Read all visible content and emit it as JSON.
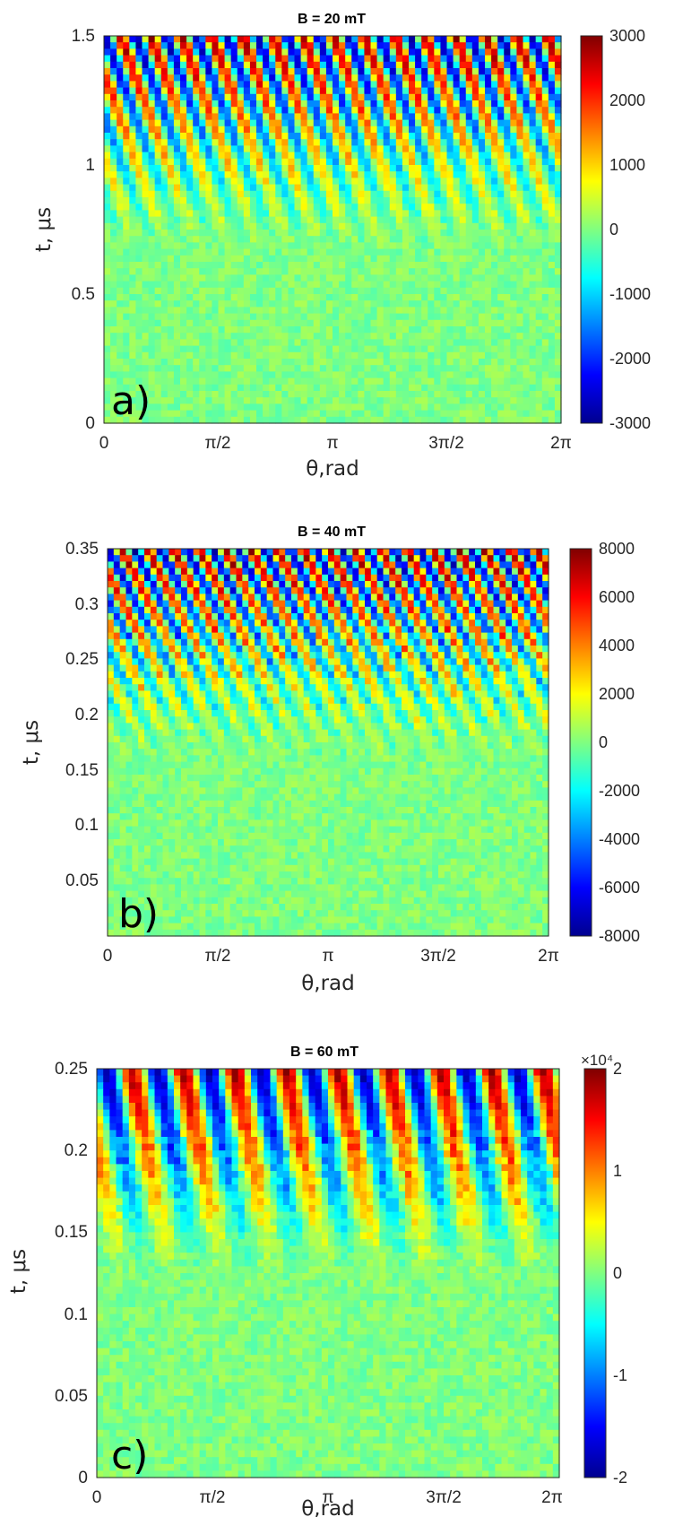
{
  "chart_data": [
    {
      "type": "heatmap",
      "title": "B = 20 mT",
      "tag": "a)",
      "xlabel": "θ,rad",
      "ylabel": "t, μs",
      "xlim": [
        0,
        6.2832
      ],
      "ylim": [
        0,
        1.5
      ],
      "x_ticks": [
        {
          "value": 0,
          "label": "0"
        },
        {
          "value": 1.5708,
          "label": "π/2"
        },
        {
          "value": 3.1416,
          "label": "π"
        },
        {
          "value": 4.7124,
          "label": "3π/2"
        },
        {
          "value": 6.2832,
          "label": "2π"
        }
      ],
      "y_ticks": [
        {
          "value": 0,
          "label": "0"
        },
        {
          "value": 0.5,
          "label": "0.5"
        },
        {
          "value": 1,
          "label": "1"
        },
        {
          "value": 1.5,
          "label": "1.5"
        }
      ],
      "clim": [
        -3000,
        3000
      ],
      "colorbar_ticks": [
        {
          "value": 3000,
          "label": "3000"
        },
        {
          "value": 2000,
          "label": "2000"
        },
        {
          "value": 1000,
          "label": "1000"
        },
        {
          "value": 0,
          "label": "0"
        },
        {
          "value": -1000,
          "label": "-1000"
        },
        {
          "value": -2000,
          "label": "-2000"
        },
        {
          "value": -3000,
          "label": "-3000"
        }
      ],
      "colorbar_exponent": "",
      "colormap": "jet",
      "pattern": {
        "onset": 0.45,
        "stripes": 15,
        "speed": 0.9,
        "chaos_start": 0
      }
    },
    {
      "type": "heatmap",
      "title": "B = 40 mT",
      "tag": "b)",
      "xlabel": "θ,rad",
      "ylabel": "t, μs",
      "xlim": [
        0,
        6.2832
      ],
      "ylim": [
        0,
        0.35
      ],
      "x_ticks": [
        {
          "value": 0,
          "label": "0"
        },
        {
          "value": 1.5708,
          "label": "π/2"
        },
        {
          "value": 3.1416,
          "label": "π"
        },
        {
          "value": 4.7124,
          "label": "3π/2"
        },
        {
          "value": 6.2832,
          "label": "2π"
        }
      ],
      "y_ticks": [
        {
          "value": 0.05,
          "label": "0.05"
        },
        {
          "value": 0.1,
          "label": "0.1"
        },
        {
          "value": 0.15,
          "label": "0.15"
        },
        {
          "value": 0.2,
          "label": "0.2"
        },
        {
          "value": 0.25,
          "label": "0.25"
        },
        {
          "value": 0.3,
          "label": "0.3"
        },
        {
          "value": 0.35,
          "label": "0.35"
        }
      ],
      "clim": [
        -8000,
        8000
      ],
      "colorbar_ticks": [
        {
          "value": 8000,
          "label": "8000"
        },
        {
          "value": 6000,
          "label": "6000"
        },
        {
          "value": 4000,
          "label": "4000"
        },
        {
          "value": 2000,
          "label": "2000"
        },
        {
          "value": 0,
          "label": "0"
        },
        {
          "value": -2000,
          "label": "-2000"
        },
        {
          "value": -4000,
          "label": "-4000"
        },
        {
          "value": -6000,
          "label": "-6000"
        },
        {
          "value": -8000,
          "label": "-8000"
        }
      ],
      "colorbar_exponent": "",
      "colormap": "jet",
      "pattern": {
        "onset": 0.45,
        "stripes": 17,
        "speed": 1.3,
        "chaos_start": 0.4
      }
    },
    {
      "type": "heatmap",
      "title": "B = 60 mT",
      "tag": "c)",
      "xlabel": "θ,rad",
      "ylabel": "t, μs",
      "xlim": [
        0,
        6.2832
      ],
      "ylim": [
        0,
        0.25
      ],
      "x_ticks": [
        {
          "value": 0,
          "label": "0"
        },
        {
          "value": 1.5708,
          "label": "π/2"
        },
        {
          "value": 3.1416,
          "label": "π"
        },
        {
          "value": 4.7124,
          "label": "3π/2"
        },
        {
          "value": 6.2832,
          "label": "2π"
        }
      ],
      "y_ticks": [
        {
          "value": 0,
          "label": "0"
        },
        {
          "value": 0.05,
          "label": "0.05"
        },
        {
          "value": 0.1,
          "label": "0.1"
        },
        {
          "value": 0.15,
          "label": "0.15"
        },
        {
          "value": 0.2,
          "label": "0.2"
        },
        {
          "value": 0.25,
          "label": "0.25"
        }
      ],
      "clim": [
        -2,
        2
      ],
      "colorbar_ticks": [
        {
          "value": 2,
          "label": "2"
        },
        {
          "value": 1,
          "label": "1"
        },
        {
          "value": 0,
          "label": "0"
        },
        {
          "value": -1,
          "label": "-1"
        },
        {
          "value": -2,
          "label": "-2"
        }
      ],
      "colorbar_exponent": "×10⁴",
      "colormap": "jet",
      "pattern": {
        "onset": 0.5,
        "stripes": 9,
        "speed": 0.5,
        "chaos_start": 0.6
      }
    }
  ]
}
